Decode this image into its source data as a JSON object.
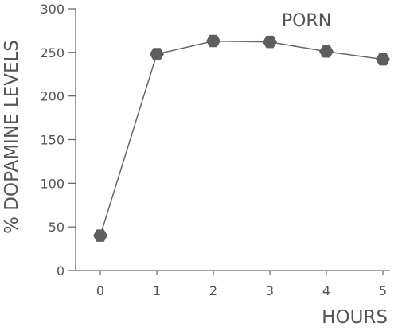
{
  "chart_data": {
    "type": "line",
    "title": "",
    "annotation": "PORN",
    "xlabel": "HOURS",
    "ylabel": "% DOPAMINE LEVELS",
    "x": [
      0,
      1,
      2,
      3,
      4,
      5
    ],
    "x_tick_labels": [
      "0",
      "1",
      "2",
      "3",
      "4",
      "5"
    ],
    "y_ticks": [
      0,
      50,
      100,
      150,
      200,
      250,
      300
    ],
    "y_tick_labels": [
      "0",
      "50",
      "100",
      "150",
      "200",
      "250",
      "300"
    ],
    "ylim": [
      0,
      300
    ],
    "xlim": [
      -0.55,
      5.15
    ],
    "series": [
      {
        "values": [
          40,
          248,
          263,
          262,
          251,
          242
        ]
      }
    ],
    "grid": false,
    "legend": "none",
    "line_color": "#666666",
    "marker_color": "#5e5e5e",
    "marker_shape": "hexagon",
    "text_color": "#555555",
    "axis_color": "#6b6b6b"
  }
}
